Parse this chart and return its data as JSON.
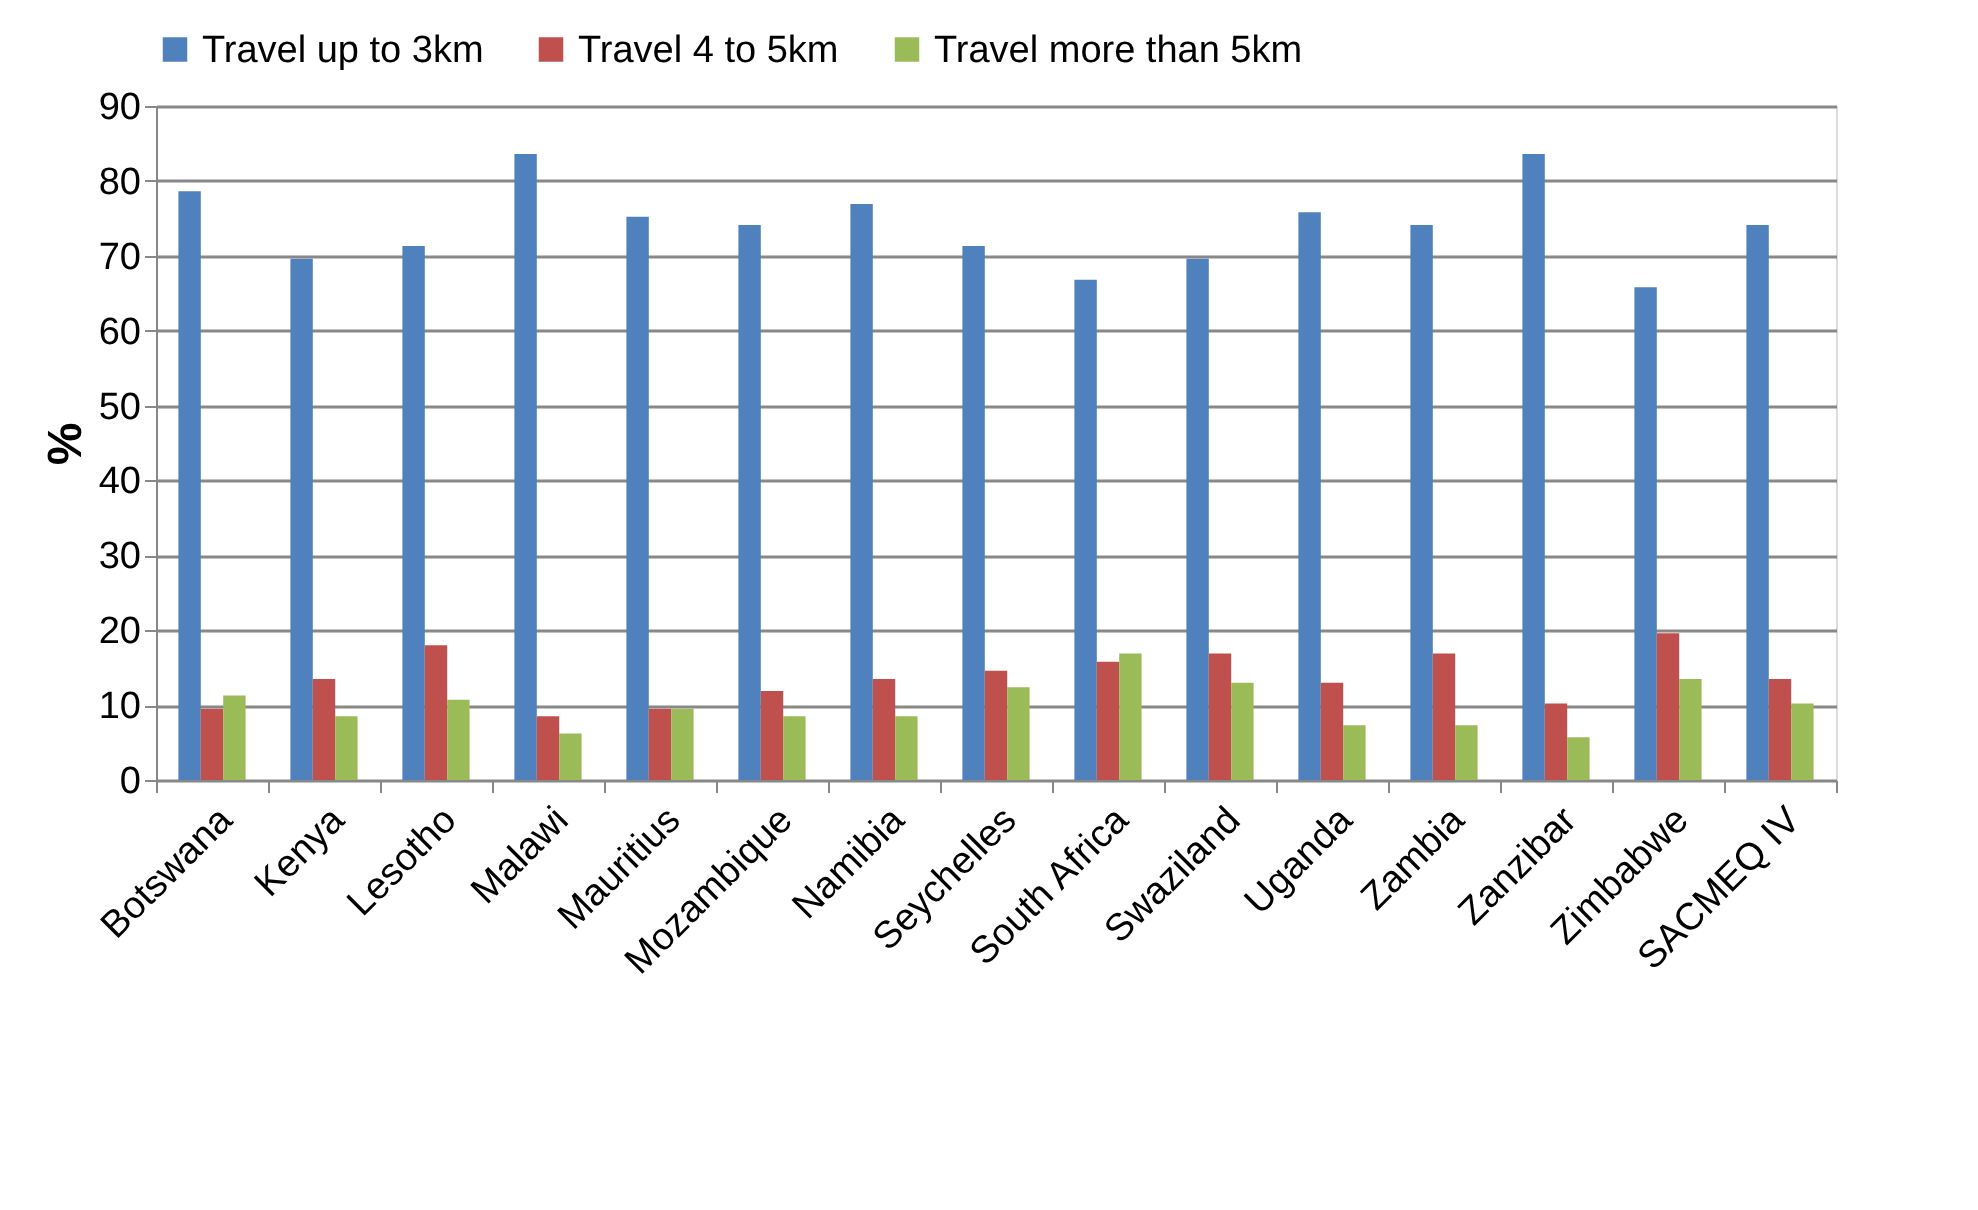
{
  "chart_data": {
    "type": "bar",
    "ylabel": "%",
    "categories": [
      "Botswana",
      "Kenya",
      "Lesotho",
      "Malawi",
      "Mauritius",
      "Mozambique",
      "Namibia",
      "Seychelles",
      "South Africa",
      "Swaziland",
      "Uganda",
      "Zambia",
      "Zanzibar",
      "Zimbabwe",
      "SACMEQ IV"
    ],
    "series": [
      {
        "name": "Travel up to 3km",
        "color": "#4f81bd",
        "values": [
          78.6,
          69.6,
          71.3,
          83.6,
          75.2,
          74.1,
          76.9,
          71.3,
          66.8,
          69.6,
          75.8,
          74.1,
          83.6,
          65.8,
          74.1
        ]
      },
      {
        "name": "Travel 4 to 5km",
        "color": "#c0504d",
        "values": [
          9.5,
          13.5,
          18.0,
          8.5,
          9.5,
          11.9,
          13.5,
          14.6,
          15.8,
          16.9,
          13.0,
          16.9,
          10.2,
          19.6,
          13.5
        ]
      },
      {
        "name": "Travel more than 5km",
        "color": "#9bbb59",
        "values": [
          11.3,
          8.5,
          10.7,
          6.2,
          9.5,
          8.5,
          8.5,
          12.4,
          16.9,
          13.0,
          7.3,
          7.3,
          5.7,
          13.5,
          10.2
        ]
      }
    ],
    "ylim": [
      0,
      90
    ],
    "yticks": [
      0,
      10,
      20,
      30,
      40,
      50,
      60,
      70,
      80,
      90
    ],
    "grid": "y",
    "legend": "top"
  }
}
